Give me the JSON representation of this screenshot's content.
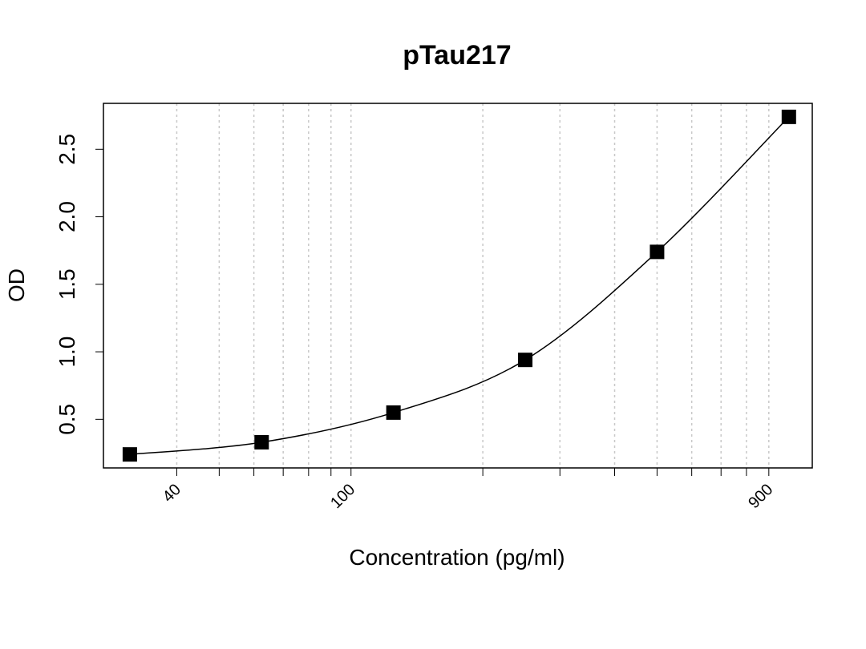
{
  "chart_data": {
    "type": "scatter",
    "title": "pTau217",
    "x_label": "Concentration (pg/ml)",
    "y_label": "OD",
    "x": [
      31.25,
      62.5,
      125,
      250,
      500,
      1000
    ],
    "values": [
      0.24,
      0.33,
      0.55,
      0.94,
      1.74,
      2.74
    ],
    "color": "#000000",
    "fitted_curve": true,
    "xscale": "log",
    "xlim": [
      27.2,
      1131
    ],
    "ylim": [
      0.14,
      2.84
    ],
    "xticks": [
      40,
      100,
      900
    ],
    "xgrid": [
      40,
      50,
      60,
      70,
      80,
      90,
      100,
      200,
      300,
      400,
      500,
      600,
      700,
      800,
      900
    ],
    "yticks": [
      0.5,
      {
        "value": 1,
        "label": "1.0"
      },
      1.5,
      {
        "value": 2,
        "label": "2.0"
      },
      2.5
    ],
    "grid": true
  }
}
